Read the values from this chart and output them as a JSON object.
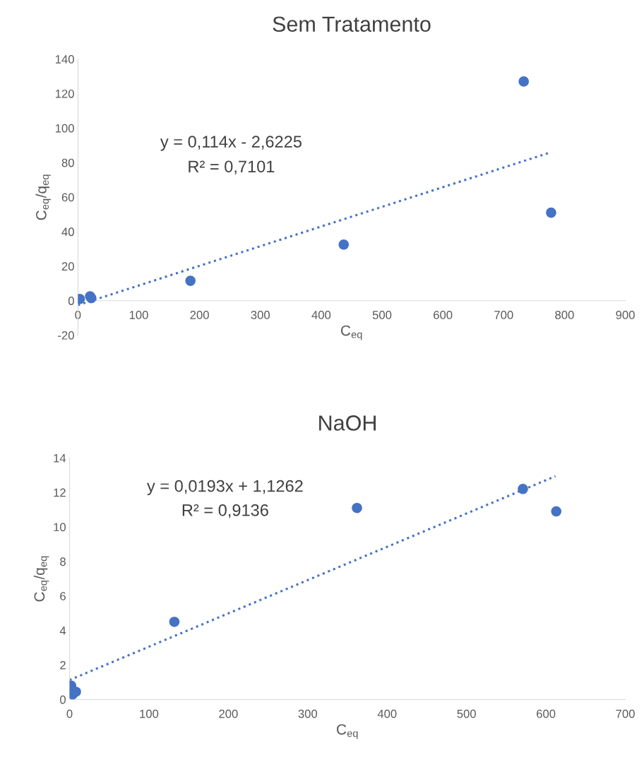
{
  "chart_data": [
    {
      "type": "scatter",
      "title": "Sem Tratamento",
      "xlabel": "C$_{eq}$",
      "ylabel": "C$_{eq}$/q$_{eq}$",
      "xlim": [
        0,
        900
      ],
      "xticks": [
        0,
        100,
        200,
        300,
        400,
        500,
        600,
        700,
        800,
        900
      ],
      "ylim": [
        -20,
        140
      ],
      "yticks": [
        -20,
        0,
        20,
        40,
        60,
        80,
        100,
        120,
        140
      ],
      "grid": false,
      "annotations": [
        "y = 0,114x - 2,6225",
        "R² = 0,7101"
      ],
      "series": [
        {
          "color": "#4472c4",
          "marker": "circle",
          "x": [
            3,
            20,
            22,
            185,
            437,
            733,
            778
          ],
          "values": [
            1,
            2.5,
            1.5,
            11.5,
            32.5,
            127,
            51
          ]
        },
        {
          "type": "line",
          "color": "#4472c4",
          "marker": "none",
          "line_style": "dotted",
          "x": [
            0,
            775
          ],
          "values": [
            -2.6,
            85.7
          ]
        }
      ]
    },
    {
      "type": "scatter",
      "title": "NaOH",
      "xlabel": "C$_{eq}$",
      "ylabel": "C$_{eq}$/q$_{eq}$",
      "xlim": [
        0,
        700
      ],
      "xticks": [
        0,
        100,
        200,
        300,
        400,
        500,
        600,
        700
      ],
      "ylim": [
        0,
        14
      ],
      "yticks": [
        0,
        2,
        4,
        6,
        8,
        10,
        12,
        14
      ],
      "grid": false,
      "annotations": [
        "y = 0,0193x + 1,1262",
        "R² = 0,9136"
      ],
      "series": [
        {
          "color": "#4472c4",
          "marker": "circle",
          "x": [
            2,
            4,
            8,
            132,
            362,
            571,
            613
          ],
          "values": [
            0.8,
            0.3,
            0.45,
            4.5,
            11.1,
            12.2,
            10.9
          ]
        },
        {
          "type": "line",
          "color": "#4472c4",
          "marker": "none",
          "line_style": "dotted",
          "x": [
            0,
            612
          ],
          "values": [
            1.13,
            12.94
          ]
        }
      ]
    }
  ]
}
